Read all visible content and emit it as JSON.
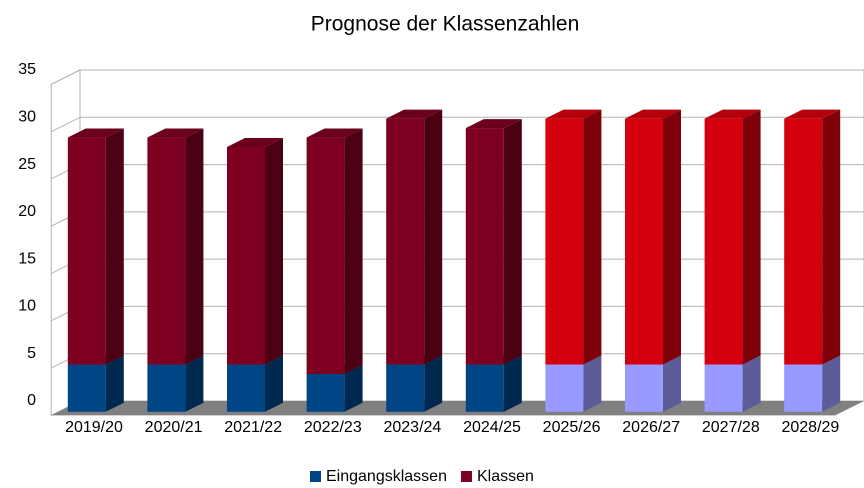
{
  "chart_data": {
    "type": "bar3d_stacked",
    "title": "Prognose der Klassenzahlen",
    "categories": [
      "2019/20",
      "2020/21",
      "2021/22",
      "2022/23",
      "2023/24",
      "2024/25",
      "2025/26",
      "2026/27",
      "2027/28",
      "2028/29"
    ],
    "series": [
      {
        "name": "Eingangsklassen",
        "color": "#004586",
        "values": [
          5,
          5,
          5,
          4,
          5,
          5,
          5,
          5,
          5,
          5
        ],
        "colors": [
          "#004586",
          "#004586",
          "#004586",
          "#004586",
          "#004586",
          "#004586",
          "#9999ff",
          "#9999ff",
          "#9999ff",
          "#9999ff"
        ]
      },
      {
        "name": "Klassen",
        "color": "#7e0021",
        "values": [
          24,
          24,
          23,
          25,
          26,
          25,
          26,
          26,
          26,
          26
        ],
        "colors": [
          "#7e0021",
          "#7e0021",
          "#7e0021",
          "#7e0021",
          "#7e0021",
          "#7e0021",
          "#d4000d",
          "#d4000d",
          "#d4000d",
          "#d4000d"
        ]
      }
    ],
    "ylim": [
      0,
      35
    ],
    "yticks": [
      0,
      5,
      10,
      15,
      20,
      25,
      30,
      35
    ],
    "grid": true,
    "legend": "bottom"
  }
}
